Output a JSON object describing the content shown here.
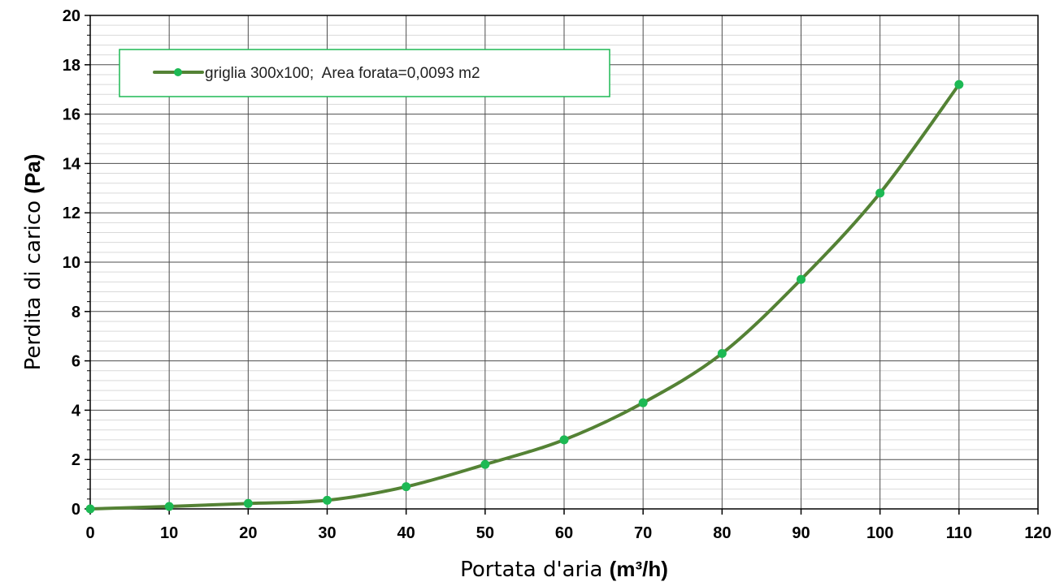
{
  "chart_data": {
    "type": "line",
    "smooth": true,
    "x": [
      0,
      10,
      20,
      30,
      40,
      50,
      60,
      70,
      80,
      90,
      100,
      110
    ],
    "series": [
      {
        "name": "griglia 300x100;  Area forata=0,0093 m2",
        "values": [
          0,
          0.1,
          0.22,
          0.35,
          0.9,
          1.8,
          2.8,
          4.3,
          6.3,
          9.3,
          12.8,
          17.2
        ],
        "line_color": "#548235",
        "marker_color": "#1db954"
      }
    ],
    "xlabel": "Portata d'aria",
    "xlabel_unit": "(m³/h)",
    "ylabel": "Perdita di carico",
    "ylabel_unit": "(Pa)",
    "xlim": [
      0,
      120
    ],
    "ylim": [
      0,
      20
    ],
    "x_major_step": 10,
    "y_major_step": 2,
    "y_minor_step": 0.4,
    "x_ticks": [
      "0",
      "10",
      "20",
      "30",
      "40",
      "50",
      "60",
      "70",
      "80",
      "90",
      "100",
      "110",
      "120"
    ],
    "y_ticks": [
      "0",
      "2",
      "4",
      "6",
      "8",
      "10",
      "12",
      "14",
      "16",
      "18",
      "20"
    ],
    "grid": true,
    "legend_position": "top-left",
    "legend_border_color": "#1db954"
  }
}
